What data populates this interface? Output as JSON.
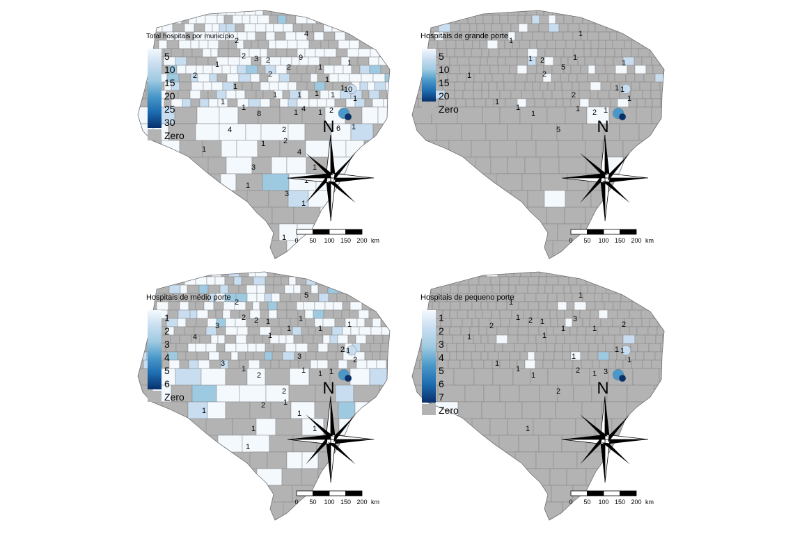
{
  "colors": {
    "zero": "#b3b3b3",
    "border": "#7f7f7f",
    "scale": [
      "#f4f9fe",
      "#c8ddf0",
      "#9ecae1",
      "#4a98c9",
      "#1d6cb1",
      "#08306b"
    ]
  },
  "scalebar": {
    "ticks": [
      "0",
      "50",
      "100",
      "150",
      "200"
    ],
    "unit": "km"
  },
  "north_label": "N",
  "panels": [
    {
      "title": "Total hospitais por município",
      "legend": {
        "breaks": [
          "5",
          "10",
          "15",
          "20",
          "25",
          "30"
        ],
        "zero_label": "Zero"
      },
      "labels": [
        "2",
        "2",
        "3",
        "2",
        "9",
        "1",
        "2",
        "4",
        "1",
        "1",
        "1",
        "1",
        "1",
        "10",
        "2",
        "1",
        "8",
        "4",
        "2",
        "2",
        "2",
        "1",
        "1",
        "3",
        "1",
        "2",
        "1",
        "4",
        "1",
        "1",
        "1",
        "3",
        "1",
        "1",
        "6",
        "1",
        "1",
        "4",
        "1",
        "1",
        "1",
        "1",
        "1"
      ]
    },
    {
      "title": "Hospitais de grande porte",
      "legend": {
        "breaks": [
          "5",
          "10",
          "15",
          "20"
        ],
        "zero_label": "Zero"
      },
      "labels": [
        "1",
        "1",
        "1",
        "2",
        "1",
        "1",
        "5",
        "1",
        "1",
        "2",
        "2",
        "1",
        "1",
        "1",
        "1",
        "1",
        "1",
        "1",
        "5",
        "2"
      ]
    },
    {
      "title": "Hospitais de médio porte",
      "legend": {
        "breaks": [
          "1",
          "2",
          "3",
          "4",
          "5",
          "6"
        ],
        "zero_label": "Zero"
      },
      "labels": [
        "4",
        "2",
        "2",
        "1",
        "1",
        "1",
        "1",
        "5",
        "3",
        "3",
        "1",
        "2",
        "2",
        "1",
        "1",
        "1",
        "2",
        "1",
        "2",
        "1",
        "2",
        "3",
        "1",
        "1",
        "2",
        "1",
        "1",
        "1",
        "1",
        "1"
      ]
    },
    {
      "title": "Hospitais de pequeno porte",
      "legend": {
        "breaks": [
          "1",
          "2",
          "3",
          "4",
          "5",
          "6",
          "7"
        ],
        "zero_label": "Zero"
      },
      "labels": [
        "1",
        "1",
        "2",
        "1",
        "3",
        "2",
        "1",
        "1",
        "1",
        "1",
        "1",
        "1",
        "1",
        "1",
        "3",
        "1",
        "1",
        "2",
        "2",
        "1",
        "1",
        "2",
        "1",
        "1"
      ]
    }
  ]
}
